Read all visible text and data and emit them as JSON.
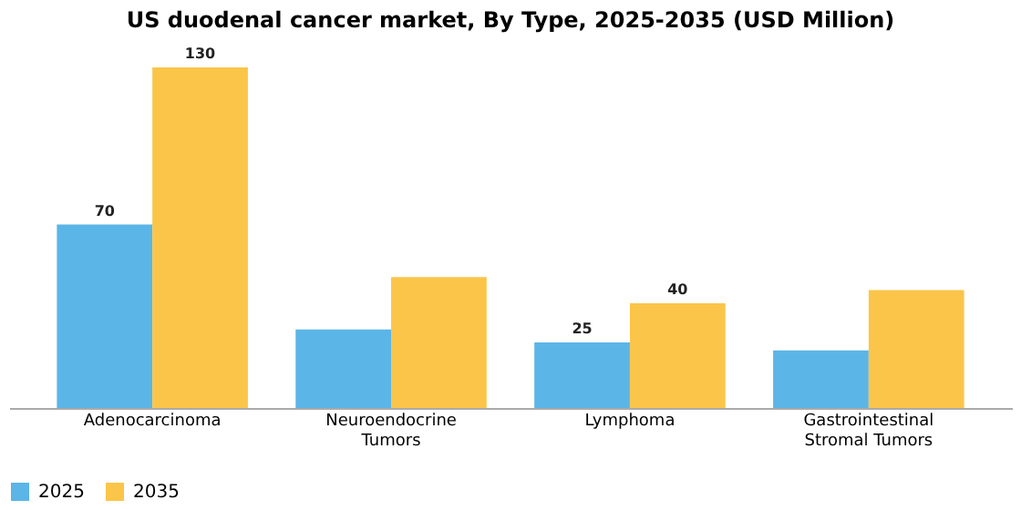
{
  "chart_data": {
    "type": "bar",
    "title": "US duodenal cancer market, By Type, 2025-2035 (USD Million)",
    "categories": [
      "Adenocarcinoma",
      "Neuroendocrine Tumors",
      "Lymphoma",
      "Gastrointestinal Stromal Tumors"
    ],
    "series": [
      {
        "name": "2025",
        "color": "#5bb5e6",
        "values": [
          70,
          30,
          25,
          22
        ],
        "value_labels": [
          "70",
          null,
          "25",
          null
        ]
      },
      {
        "name": "2035",
        "color": "#fbc54a",
        "values": [
          130,
          50,
          40,
          45
        ],
        "value_labels": [
          "130",
          null,
          "40",
          null
        ]
      }
    ],
    "legend": "bottom",
    "grid": false
  }
}
